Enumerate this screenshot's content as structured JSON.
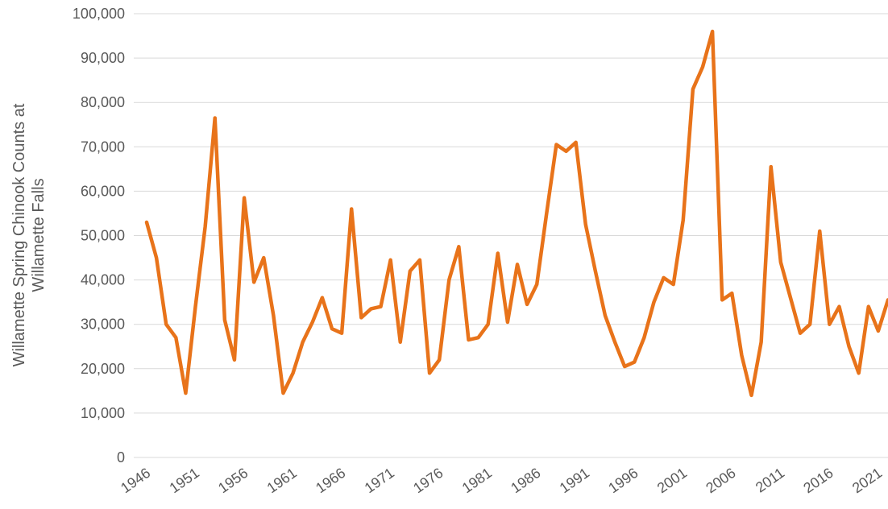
{
  "chart_data": {
    "type": "line",
    "y_label": [
      "Willamette Spring Chinook Counts at",
      "Willamette Falls"
    ],
    "x": [
      1946,
      1947,
      1948,
      1949,
      1950,
      1951,
      1952,
      1953,
      1954,
      1955,
      1956,
      1957,
      1958,
      1959,
      1960,
      1961,
      1962,
      1963,
      1964,
      1965,
      1966,
      1967,
      1968,
      1969,
      1970,
      1971,
      1972,
      1973,
      1974,
      1975,
      1976,
      1977,
      1978,
      1979,
      1980,
      1981,
      1982,
      1983,
      1984,
      1985,
      1986,
      1987,
      1988,
      1989,
      1990,
      1991,
      1992,
      1993,
      1994,
      1995,
      1996,
      1997,
      1998,
      1999,
      2000,
      2001,
      2002,
      2003,
      2004,
      2005,
      2006,
      2007,
      2008,
      2009,
      2010,
      2011,
      2012,
      2013,
      2014,
      2015,
      2016,
      2017,
      2018,
      2019,
      2020,
      2021,
      2022
    ],
    "series": [
      {
        "name": "Willamette Spring Chinook Counts",
        "color": "#e8731a",
        "values": [
          53000,
          45000,
          30000,
          27000,
          14500,
          34000,
          52000,
          76500,
          31000,
          22000,
          58500,
          39500,
          45000,
          32000,
          14500,
          19000,
          26000,
          30500,
          36000,
          29000,
          28000,
          56000,
          31500,
          33500,
          34000,
          44500,
          26000,
          42000,
          44500,
          19000,
          22000,
          40000,
          47500,
          26500,
          27000,
          30000,
          46000,
          30500,
          43500,
          34500,
          39000,
          55000,
          70500,
          69000,
          71000,
          52500,
          42000,
          32000,
          26000,
          20500,
          21500,
          27000,
          35000,
          40500,
          39000,
          53500,
          83000,
          88000,
          96000,
          35500,
          37000,
          23000,
          14000,
          26000,
          65500,
          44000,
          36000,
          28000,
          30000,
          51000,
          30000,
          34000,
          25000,
          19000,
          34000,
          28500,
          35500
        ]
      }
    ],
    "xlim": [
      1946,
      2022
    ],
    "xticks": [
      1946,
      1951,
      1956,
      1961,
      1966,
      1971,
      1976,
      1981,
      1986,
      1991,
      1996,
      2001,
      2006,
      2011,
      2016,
      2021
    ],
    "ylim": [
      0,
      100000
    ],
    "yticks": [
      0,
      {
        "value": 10000,
        "label": "10,000"
      },
      {
        "value": 20000,
        "label": "20,000"
      },
      {
        "value": 30000,
        "label": "30,000"
      },
      {
        "value": 40000,
        "label": "40,000"
      },
      {
        "value": 50000,
        "label": "50,000"
      },
      {
        "value": 60000,
        "label": "60,000"
      },
      {
        "value": 70000,
        "label": "70,000"
      },
      {
        "value": 80000,
        "label": "80,000"
      },
      {
        "value": 90000,
        "label": "90,000"
      },
      {
        "value": 100000,
        "label": "100,000"
      }
    ],
    "grid": true
  }
}
